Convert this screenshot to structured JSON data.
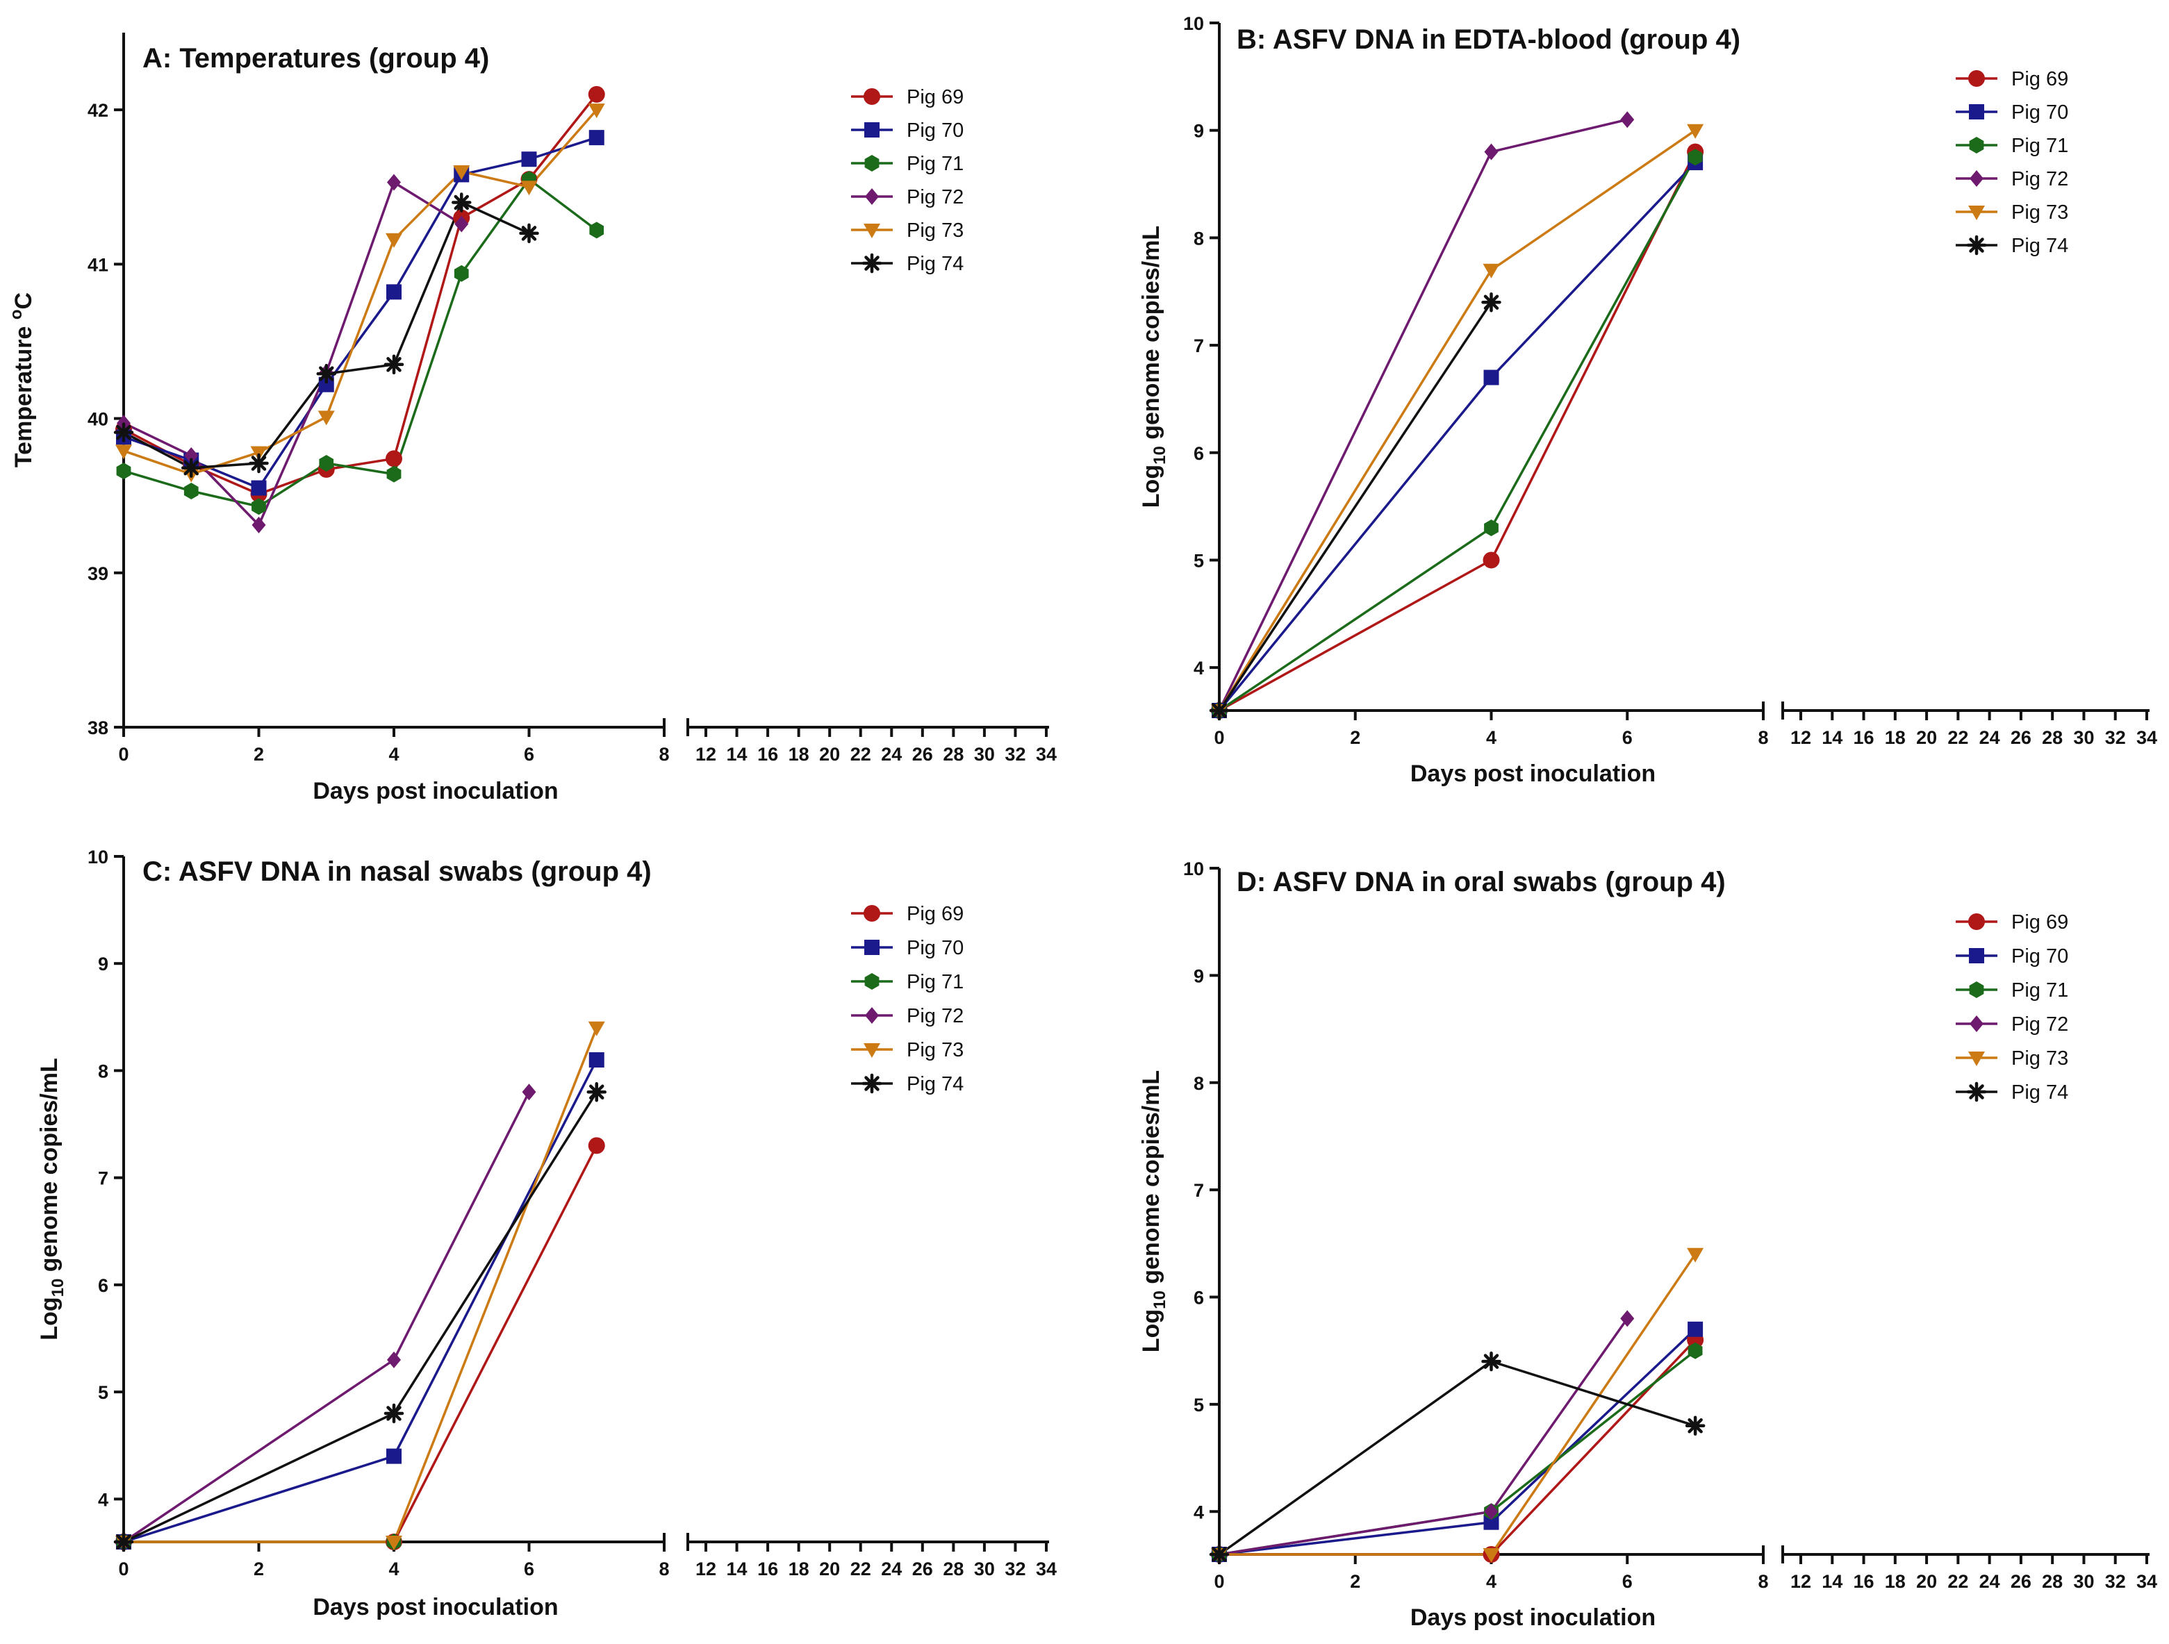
{
  "colors": {
    "Pig 69": "#b01818",
    "Pig 70": "#1a1a8c",
    "Pig 71": "#1b6b1b",
    "Pig 72": "#6e1a6e",
    "Pig 73": "#cc7a14",
    "Pig 74": "#111111"
  },
  "chart_data": [
    {
      "id": "A",
      "type": "line",
      "title": "A: Temperatures (group 4)",
      "xlabel": "Days post inoculation",
      "ylabel": "Temperature °C",
      "ylabel_main": "Temperature ",
      "ylabel_sup": "o",
      "ylabel_tail": "C",
      "ylim": [
        38,
        42.5
      ],
      "yticks": [
        "38",
        "39",
        "40",
        "41",
        "42"
      ],
      "xticks_left": [
        "0",
        "2",
        "4",
        "6",
        "8"
      ],
      "xticks_right": [
        "12",
        "14",
        "16",
        "18",
        "20",
        "22",
        "24",
        "26",
        "28",
        "30",
        "32",
        "34"
      ],
      "legend": [
        "Pig 69",
        "Pig 70",
        "Pig 71",
        "Pig 72",
        "Pig 73",
        "Pig 74"
      ],
      "series": [
        {
          "name": "Pig 69",
          "marker": "circle",
          "x": [
            0,
            1,
            2,
            3,
            4,
            5,
            6,
            7
          ],
          "values": [
            39.93,
            39.7,
            39.51,
            39.67,
            39.74,
            41.3,
            41.55,
            42.1
          ]
        },
        {
          "name": "Pig 70",
          "marker": "square",
          "x": [
            0,
            1,
            2,
            3,
            4,
            5,
            6,
            7
          ],
          "values": [
            39.88,
            39.73,
            39.55,
            40.22,
            40.82,
            41.58,
            41.68,
            41.82
          ]
        },
        {
          "name": "Pig 71",
          "marker": "hexagon",
          "x": [
            0,
            1,
            2,
            3,
            4,
            5,
            6,
            7
          ],
          "values": [
            39.66,
            39.53,
            39.43,
            39.71,
            39.64,
            40.94,
            41.55,
            41.22
          ]
        },
        {
          "name": "Pig 72",
          "marker": "diamond",
          "x": [
            0,
            1,
            2,
            3,
            4,
            5
          ],
          "values": [
            39.97,
            39.76,
            39.31,
            40.3,
            41.53,
            41.26
          ]
        },
        {
          "name": "Pig 73",
          "marker": "triangle-down",
          "x": [
            0,
            1,
            2,
            3,
            4,
            5,
            6,
            7
          ],
          "values": [
            39.79,
            39.64,
            39.78,
            40.01,
            41.16,
            41.6,
            41.5,
            42.0
          ]
        },
        {
          "name": "Pig 74",
          "marker": "asterisk",
          "x": [
            0,
            1,
            2,
            3,
            4,
            5,
            6
          ],
          "values": [
            39.91,
            39.68,
            39.71,
            40.29,
            40.35,
            41.4,
            41.2
          ]
        }
      ]
    },
    {
      "id": "B",
      "type": "line",
      "title": "B: ASFV DNA in EDTA-blood (group 4)",
      "xlabel": "Days post inoculation",
      "ylabel": "Log10 genome copies/mL",
      "ylabel_main": "Log",
      "ylabel_sub": "10",
      "ylabel_tail": " genome copies/mL",
      "ylim": [
        3.6,
        10
      ],
      "yticks": [
        "4",
        "5",
        "6",
        "7",
        "8",
        "9",
        "10"
      ],
      "xticks_left": [
        "0",
        "2",
        "4",
        "6",
        "8"
      ],
      "xticks_right": [
        "12",
        "14",
        "16",
        "18",
        "20",
        "22",
        "24",
        "26",
        "28",
        "30",
        "32",
        "34"
      ],
      "legend": [
        "Pig 69",
        "Pig 70",
        "Pig 71",
        "Pig 72",
        "Pig 73",
        "Pig 74"
      ],
      "series": [
        {
          "name": "Pig 69",
          "marker": "circle",
          "x": [
            0,
            4,
            7
          ],
          "values": [
            3.6,
            5.0,
            8.8
          ]
        },
        {
          "name": "Pig 70",
          "marker": "square",
          "x": [
            0,
            4,
            7
          ],
          "values": [
            3.6,
            6.7,
            8.7
          ]
        },
        {
          "name": "Pig 71",
          "marker": "hexagon",
          "x": [
            0,
            4,
            7
          ],
          "values": [
            3.6,
            5.3,
            8.75
          ]
        },
        {
          "name": "Pig 72",
          "marker": "diamond",
          "x": [
            0,
            4,
            6
          ],
          "values": [
            3.6,
            8.8,
            9.1
          ]
        },
        {
          "name": "Pig 73",
          "marker": "triangle-down",
          "x": [
            0,
            4,
            7
          ],
          "values": [
            3.6,
            7.7,
            9.0
          ]
        },
        {
          "name": "Pig 74",
          "marker": "asterisk",
          "x": [
            0,
            4
          ],
          "values": [
            3.6,
            7.4
          ]
        }
      ]
    },
    {
      "id": "C",
      "type": "line",
      "title": "C: ASFV DNA in nasal swabs (group 4)",
      "xlabel": "Days post inoculation",
      "ylabel": "Log10 genome copies/mL",
      "ylabel_main": "Log",
      "ylabel_sub": "10",
      "ylabel_tail": " genome copies/mL",
      "ylim": [
        3.6,
        10
      ],
      "yticks": [
        "4",
        "5",
        "6",
        "7",
        "8",
        "9",
        "10"
      ],
      "xticks_left": [
        "0",
        "2",
        "4",
        "6",
        "8"
      ],
      "xticks_right": [
        "12",
        "14",
        "16",
        "18",
        "20",
        "22",
        "24",
        "26",
        "28",
        "30",
        "32",
        "34"
      ],
      "legend": [
        "Pig 69",
        "Pig 70",
        "Pig 71",
        "Pig 72",
        "Pig 73",
        "Pig 74"
      ],
      "series": [
        {
          "name": "Pig 69",
          "marker": "circle",
          "x": [
            0,
            4,
            7
          ],
          "values": [
            3.6,
            3.6,
            7.3
          ]
        },
        {
          "name": "Pig 70",
          "marker": "square",
          "x": [
            0,
            4,
            7
          ],
          "values": [
            3.6,
            4.4,
            8.1
          ]
        },
        {
          "name": "Pig 71",
          "marker": "hexagon",
          "x": [
            0,
            4
          ],
          "values": [
            3.6,
            3.6
          ]
        },
        {
          "name": "Pig 72",
          "marker": "diamond",
          "x": [
            0,
            4,
            6
          ],
          "values": [
            3.6,
            5.3,
            7.8
          ]
        },
        {
          "name": "Pig 73",
          "marker": "triangle-down",
          "x": [
            0,
            4,
            7
          ],
          "values": [
            3.6,
            3.6,
            8.4
          ]
        },
        {
          "name": "Pig 74",
          "marker": "asterisk",
          "x": [
            0,
            4,
            7
          ],
          "values": [
            3.6,
            4.8,
            7.8
          ]
        }
      ]
    },
    {
      "id": "D",
      "type": "line",
      "title": "D: ASFV DNA in oral swabs (group 4)",
      "xlabel": "Days post inoculation",
      "ylabel": "Log10 genome copies/mL",
      "ylabel_main": "Log",
      "ylabel_sub": "10",
      "ylabel_tail": " genome copies/mL",
      "ylim": [
        3.6,
        10
      ],
      "yticks": [
        "4",
        "5",
        "6",
        "7",
        "8",
        "9",
        "10"
      ],
      "xticks_left": [
        "0",
        "2",
        "4",
        "6",
        "8"
      ],
      "xticks_right": [
        "12",
        "14",
        "16",
        "18",
        "20",
        "22",
        "24",
        "26",
        "28",
        "30",
        "32",
        "34"
      ],
      "legend": [
        "Pig 69",
        "Pig 70",
        "Pig 71",
        "Pig 72",
        "Pig 73",
        "Pig 74"
      ],
      "series": [
        {
          "name": "Pig 69",
          "marker": "circle",
          "x": [
            0,
            4,
            7
          ],
          "values": [
            3.6,
            3.6,
            5.6
          ]
        },
        {
          "name": "Pig 70",
          "marker": "square",
          "x": [
            0,
            4,
            7
          ],
          "values": [
            3.6,
            3.9,
            5.7
          ]
        },
        {
          "name": "Pig 71",
          "marker": "hexagon",
          "x": [
            0,
            4,
            7
          ],
          "values": [
            3.6,
            4.0,
            5.5
          ]
        },
        {
          "name": "Pig 72",
          "marker": "diamond",
          "x": [
            0,
            4,
            6
          ],
          "values": [
            3.6,
            4.0,
            5.8
          ]
        },
        {
          "name": "Pig 73",
          "marker": "triangle-down",
          "x": [
            0,
            4,
            7
          ],
          "values": [
            3.6,
            3.6,
            6.4
          ]
        },
        {
          "name": "Pig 74",
          "marker": "asterisk",
          "x": [
            0,
            4,
            7
          ],
          "values": [
            3.6,
            5.4,
            4.8
          ]
        }
      ]
    }
  ]
}
